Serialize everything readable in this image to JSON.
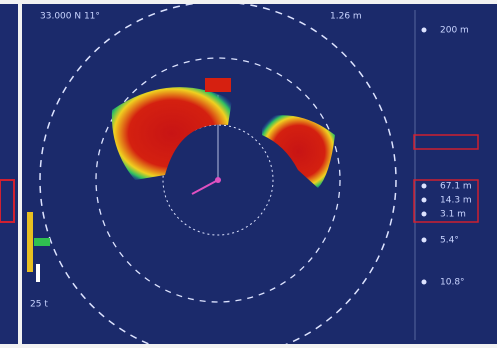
{
  "header": {
    "left_readout": "33.000 N 11°",
    "right_readout": "1.26 m"
  },
  "sidebar": {
    "items": [
      "200 m",
      "67.1 m",
      "14.3 m",
      "3.1 m",
      "5.4°",
      "10.8°"
    ]
  },
  "scale_label": "25 t"
}
